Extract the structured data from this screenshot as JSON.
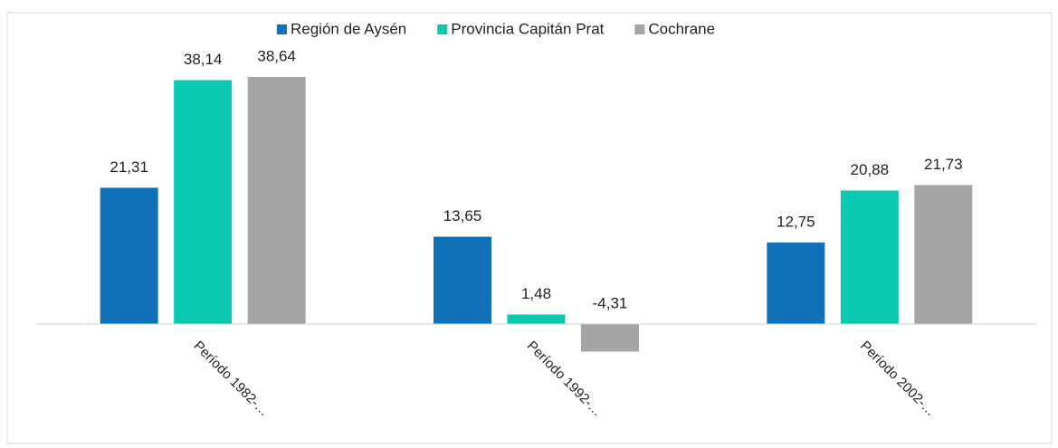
{
  "chart_data": {
    "type": "bar",
    "categories": [
      "Período 1982-…",
      "Período 1992-…",
      "Período 2002-…"
    ],
    "series": [
      {
        "name": "Región de Aysén",
        "color": "#0f72b8",
        "values": [
          21.31,
          13.65,
          12.75
        ],
        "value_labels": [
          "21,31",
          "13,65",
          "12,75"
        ]
      },
      {
        "name": "Provincia Capitán Prat",
        "color": "#0bc8b0",
        "values": [
          38.14,
          1.48,
          20.88
        ],
        "value_labels": [
          "38,14",
          "1,48",
          "20,88"
        ]
      },
      {
        "name": "Cochrane",
        "color": "#a5a5a5",
        "values": [
          38.64,
          -4.31,
          21.73
        ],
        "value_labels": [
          "38,64",
          "-4,31",
          "21,73"
        ]
      }
    ],
    "legend": "top"
  }
}
